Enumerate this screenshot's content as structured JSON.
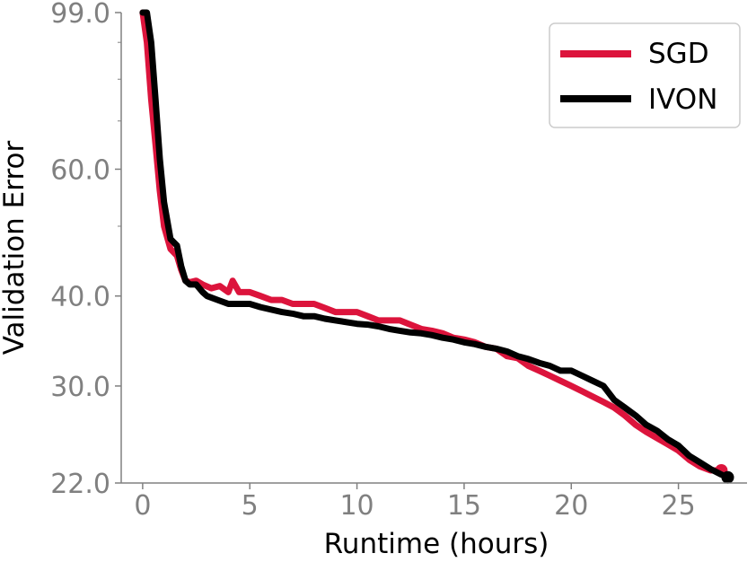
{
  "chart_data": {
    "type": "line",
    "xlabel": "Runtime (hours)",
    "ylabel": "Validation Error",
    "xlim": [
      -1,
      28.2
    ],
    "ylim": [
      22.0,
      99.0
    ],
    "y_scale": "log",
    "x_ticks": [
      0,
      5,
      10,
      15,
      20,
      25
    ],
    "x_tick_labels": [
      "0",
      "5",
      "10",
      "15",
      "20",
      "25"
    ],
    "y_ticks": [
      22.0,
      30.0,
      40.0,
      60.0,
      99.0
    ],
    "y_tick_labels": [
      "22.0",
      "30.0",
      "40.0",
      "60.0",
      "99.0"
    ],
    "grid": false,
    "legend_position": "top-right",
    "series": [
      {
        "name": "SGD",
        "color": "#dc143c",
        "x": [
          0.0,
          0.2,
          0.4,
          0.6,
          0.8,
          1.0,
          1.3,
          1.6,
          1.8,
          2.0,
          2.2,
          2.5,
          2.8,
          3.2,
          3.6,
          4.0,
          4.2,
          4.5,
          5.0,
          5.5,
          6.0,
          6.5,
          7.0,
          7.5,
          8.0,
          8.5,
          9.0,
          9.5,
          10.0,
          10.5,
          11.0,
          11.5,
          12.0,
          12.5,
          13.0,
          13.5,
          14.0,
          14.5,
          15.0,
          15.5,
          16.0,
          16.5,
          17.0,
          17.5,
          18.0,
          18.5,
          19.0,
          19.5,
          20.0,
          20.5,
          21.0,
          21.5,
          22.0,
          22.5,
          23.0,
          23.5,
          24.0,
          24.5,
          25.0,
          25.5,
          26.0,
          26.5,
          27.0
        ],
        "y": [
          99.0,
          90.0,
          75.0,
          65.0,
          56.0,
          50.0,
          46.5,
          45.5,
          43.5,
          42.0,
          41.8,
          42.0,
          41.5,
          41.0,
          41.3,
          40.5,
          42.0,
          40.5,
          40.5,
          40.0,
          39.5,
          39.5,
          39.0,
          39.0,
          39.0,
          38.5,
          38.0,
          38.0,
          38.0,
          37.5,
          37.0,
          37.0,
          37.0,
          36.5,
          36.0,
          35.8,
          35.5,
          35.0,
          34.8,
          34.5,
          34.0,
          33.8,
          33.0,
          32.8,
          32.0,
          31.5,
          31.0,
          30.5,
          30.0,
          29.5,
          29.0,
          28.5,
          28.0,
          27.3,
          26.5,
          25.9,
          25.4,
          24.9,
          24.4,
          23.7,
          23.2,
          22.9,
          22.9
        ]
      },
      {
        "name": "IVON",
        "color": "#000000",
        "x": [
          0.0,
          0.2,
          0.4,
          0.6,
          0.8,
          1.0,
          1.3,
          1.6,
          1.8,
          2.0,
          2.2,
          2.5,
          2.8,
          3.0,
          3.5,
          4.0,
          4.5,
          5.0,
          5.5,
          6.0,
          6.5,
          7.0,
          7.5,
          8.0,
          8.5,
          9.0,
          9.5,
          10.0,
          10.5,
          11.0,
          11.5,
          12.0,
          12.5,
          13.0,
          13.5,
          14.0,
          14.5,
          15.0,
          15.5,
          16.0,
          16.5,
          17.0,
          17.5,
          18.0,
          18.5,
          19.0,
          19.5,
          20.0,
          20.5,
          21.0,
          21.5,
          22.0,
          22.5,
          23.0,
          23.5,
          24.0,
          24.5,
          25.0,
          25.5,
          26.0,
          26.5,
          27.0,
          27.3
        ],
        "y": [
          99.0,
          99.0,
          90.0,
          75.0,
          62.0,
          54.0,
          48.0,
          47.0,
          44.0,
          42.0,
          41.5,
          41.5,
          40.5,
          40.0,
          39.5,
          39.0,
          39.0,
          39.0,
          38.6,
          38.3,
          38.0,
          37.8,
          37.5,
          37.5,
          37.2,
          37.0,
          36.8,
          36.6,
          36.5,
          36.3,
          36.0,
          35.8,
          35.6,
          35.5,
          35.3,
          35.0,
          34.8,
          34.5,
          34.3,
          34.0,
          33.8,
          33.5,
          33.0,
          32.7,
          32.3,
          32.0,
          31.5,
          31.5,
          31.0,
          30.5,
          30.0,
          28.7,
          28.0,
          27.3,
          26.5,
          26.0,
          25.3,
          24.8,
          24.0,
          23.5,
          23.0,
          22.6,
          22.4
        ]
      }
    ]
  }
}
